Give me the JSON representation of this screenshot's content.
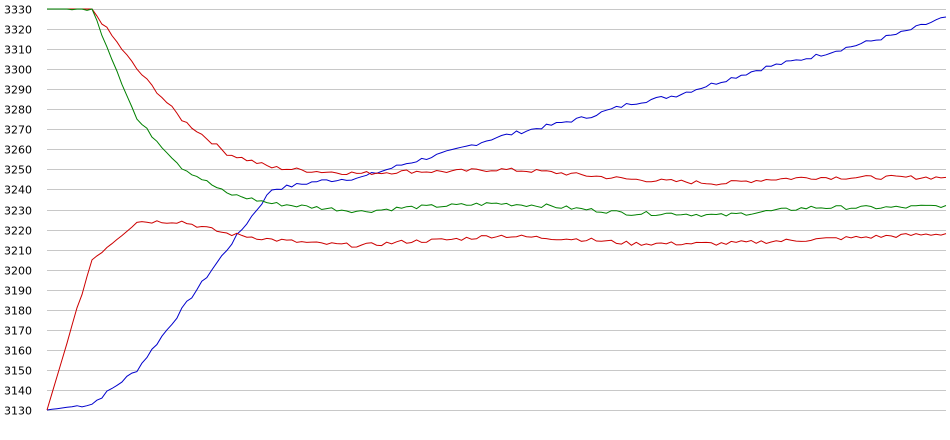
{
  "chart_data": {
    "type": "line",
    "title": "",
    "xlabel": "",
    "ylabel": "",
    "ylim": [
      3130,
      3330
    ],
    "yticks": [
      3130,
      3140,
      3150,
      3160,
      3170,
      3180,
      3190,
      3200,
      3210,
      3220,
      3230,
      3240,
      3250,
      3260,
      3270,
      3280,
      3290,
      3300,
      3310,
      3320,
      3330
    ],
    "ytick_labels": [
      "3130",
      "3140",
      "3150",
      "3160",
      "3170",
      "3180",
      "3190",
      "3200",
      "3210",
      "3220",
      "3230",
      "3240",
      "3250",
      "3260",
      "3270",
      "3280",
      "3290",
      "3300",
      "3310",
      "3320",
      "3330"
    ],
    "grid": true,
    "x": [
      0,
      10,
      20,
      30,
      40,
      50,
      60,
      70,
      80,
      90,
      100,
      110,
      120,
      130,
      140,
      150,
      160,
      170,
      180,
      190,
      200
    ],
    "series": [
      {
        "color": "#0000cc",
        "values": [
          3130,
          3133,
          3150,
          3180,
          3210,
          3240,
          3244,
          3246,
          3253,
          3259,
          3266,
          3271,
          3276,
          3283,
          3287,
          3294,
          3301,
          3306,
          3312,
          3318,
          3326
        ]
      },
      {
        "color": "#cc0000",
        "values": [
          3330,
          3330,
          3300,
          3275,
          3258,
          3251,
          3249,
          3248,
          3249,
          3249,
          3250,
          3249,
          3247,
          3245,
          3244,
          3243,
          3245,
          3246,
          3246,
          3246,
          3246
        ]
      },
      {
        "color": "#008000",
        "values": [
          3330,
          3330,
          3275,
          3251,
          3238,
          3233,
          3231,
          3229,
          3231,
          3232,
          3233,
          3232,
          3230,
          3228,
          3228,
          3227,
          3229,
          3231,
          3231,
          3231,
          3232
        ]
      },
      {
        "color": "#cc0000",
        "values": [
          3130,
          3205,
          3224,
          3224,
          3218,
          3215,
          3213,
          3212,
          3214,
          3215,
          3217,
          3216,
          3215,
          3213,
          3213,
          3213,
          3214,
          3215,
          3216,
          3217,
          3218
        ]
      }
    ]
  }
}
